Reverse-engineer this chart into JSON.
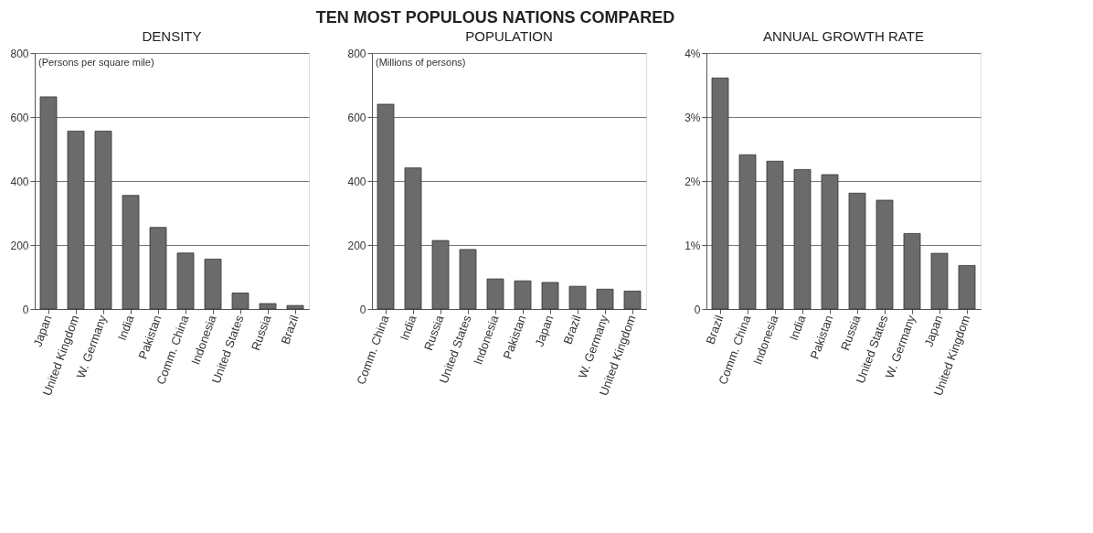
{
  "chart_data": [
    {
      "type": "bar",
      "title": "DENSITY",
      "annotations": [
        "TEN MOST POPULOUS NATIONS COMPARED",
        "(Persons per square mile)"
      ],
      "categories": [
        "Japan",
        "United Kingdom",
        "W. Germany",
        "India",
        "Pakistan",
        "Comm. China",
        "Indonesia",
        "United States",
        "Russia",
        "Brazil"
      ],
      "values": [
        663,
        556,
        556,
        355,
        255,
        175,
        156,
        50,
        17,
        11
      ],
      "color": "#6b6b6b",
      "ylim": [
        0,
        800
      ],
      "yticks": [
        0,
        200,
        400,
        600,
        800
      ],
      "grid": "y"
    },
    {
      "type": "bar",
      "title": "POPULATION",
      "annotations": [
        "(Millions of persons)"
      ],
      "categories": [
        "Comm. China",
        "India",
        "Russia",
        "United States",
        "Indonesia",
        "Pakistan",
        "Japan",
        "Brazil",
        "W. Germany",
        "United Kingdom"
      ],
      "values": [
        640,
        441,
        214,
        186,
        94,
        88,
        83,
        71,
        62,
        56
      ],
      "color": "#6b6b6b",
      "ylim": [
        0,
        800
      ],
      "yticks": [
        0,
        200,
        400,
        600,
        800
      ],
      "grid": "y"
    },
    {
      "type": "bar",
      "title": "ANNUAL GROWTH RATE",
      "categories": [
        "Brazil",
        "Comm. China",
        "Indonesia",
        "India",
        "Pakistan",
        "Russia",
        "United States",
        "W. Germany",
        "Japan",
        "United Kingdom"
      ],
      "values": [
        3.61,
        2.41,
        2.31,
        2.18,
        2.1,
        1.81,
        1.7,
        1.18,
        0.87,
        0.68
      ],
      "color": "#6b6b6b",
      "ylim": [
        0,
        4
      ],
      "yticks": [
        0,
        {
          "value": 1,
          "label": "1%"
        },
        {
          "value": 2,
          "label": "2%"
        },
        {
          "value": 3,
          "label": "3%"
        },
        {
          "value": 4,
          "label": "4%"
        }
      ],
      "grid": "y"
    }
  ]
}
